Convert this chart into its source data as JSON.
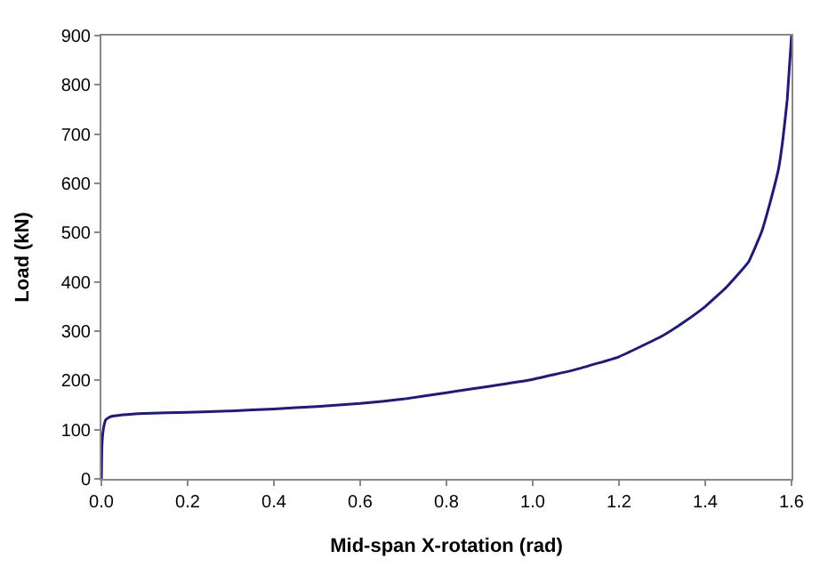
{
  "chart_data": {
    "type": "line",
    "xlabel": "Mid-span X-rotation (rad)",
    "ylabel": "Load (kN)",
    "series": [
      {
        "color": "#1f1a80",
        "x": [
          0,
          0.001,
          0.003,
          0.006,
          0.01,
          0.02,
          0.05,
          0.1,
          0.2,
          0.3,
          0.4,
          0.5,
          0.6,
          0.7,
          0.8,
          0.9,
          1.0,
          1.1,
          1.2,
          1.3,
          1.35,
          1.4,
          1.45,
          1.5,
          1.53,
          1.55,
          1.57,
          1.58,
          1.59,
          1.6
        ],
        "values": [
          0,
          60,
          90,
          108,
          120,
          126,
          130,
          133,
          135,
          138,
          142,
          147,
          153,
          162,
          175,
          188,
          202,
          222,
          248,
          290,
          318,
          350,
          390,
          440,
          500,
          560,
          630,
          690,
          770,
          900
        ]
      }
    ],
    "xlim": [
      0,
      1.6
    ],
    "xticks": [
      {
        "value": 0,
        "label": "0.0"
      },
      {
        "value": 0.2,
        "label": "0.2"
      },
      {
        "value": 0.4,
        "label": "0.4"
      },
      {
        "value": 0.6,
        "label": "0.6"
      },
      {
        "value": 0.8,
        "label": "0.8"
      },
      {
        "value": 1.0,
        "label": "1.0"
      },
      {
        "value": 1.2,
        "label": "1.2"
      },
      {
        "value": 1.4,
        "label": "1.4"
      },
      {
        "value": 1.6,
        "label": "1.6"
      }
    ],
    "ylim": [
      0,
      900
    ],
    "yticks": [
      0,
      100,
      200,
      300,
      400,
      500,
      600,
      700,
      800,
      900
    ],
    "grid": false,
    "legend": false,
    "marker": "none",
    "line_style": "solid"
  }
}
